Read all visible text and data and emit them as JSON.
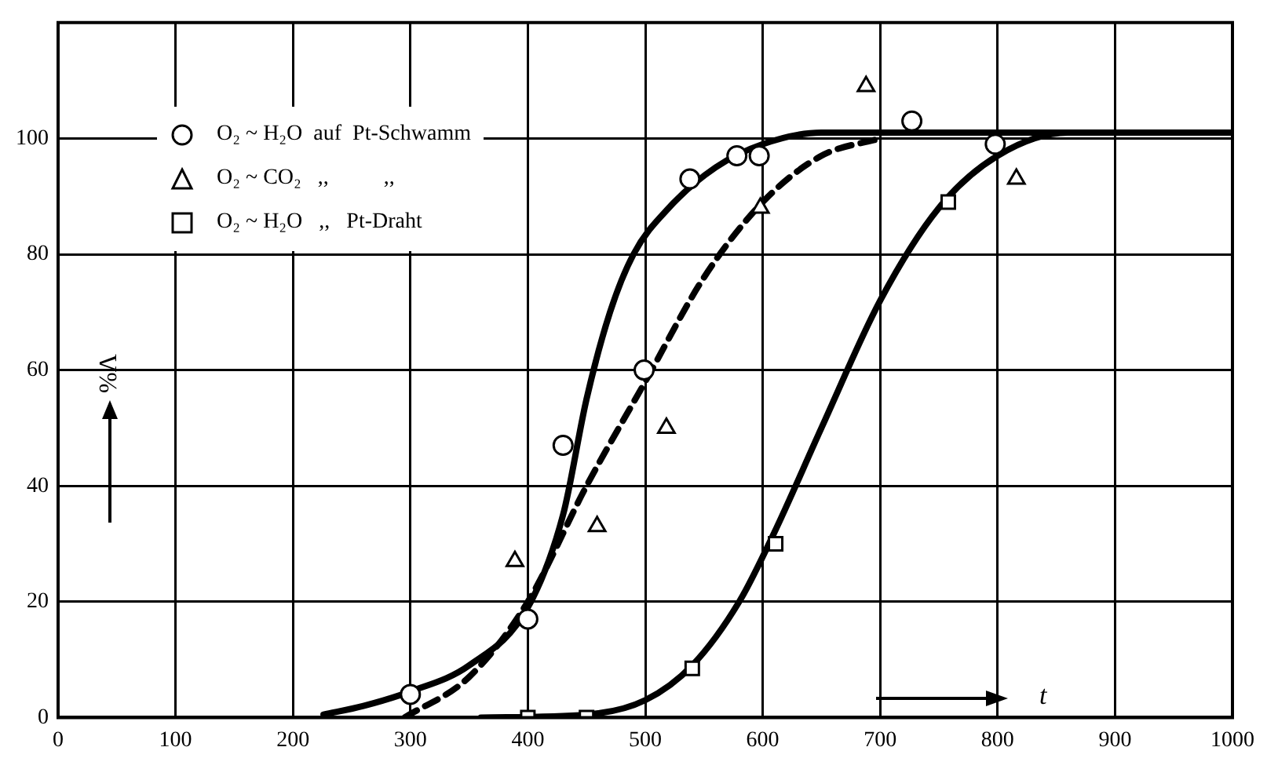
{
  "chart_data": {
    "type": "scatter",
    "xlabel": "t",
    "ylabel": "%Λ",
    "xlim": [
      0,
      1000
    ],
    "ylim": [
      0,
      120
    ],
    "xticks": [
      0,
      100,
      200,
      300,
      400,
      500,
      600,
      700,
      800,
      900,
      1000
    ],
    "yticks": [
      0,
      20,
      40,
      60,
      80,
      100
    ],
    "grid": true,
    "legend": "top left",
    "series": [
      {
        "name": "O₂ ~ H₂O  auf  Pt-Schwamm",
        "type": "scatter",
        "marker": "circle",
        "color": "#000000",
        "x": [
          300,
          400,
          430,
          499,
          538,
          578,
          597,
          727,
          798
        ],
        "values": [
          4,
          17,
          47,
          60,
          93,
          97,
          97,
          103,
          99
        ]
      },
      {
        "name": "O₂ ~ CO₂   ,,          ,,",
        "type": "scatter",
        "marker": "triangle",
        "color": "#000000",
        "x": [
          389,
          459,
          518,
          598,
          688,
          816
        ],
        "values": [
          27,
          33,
          50,
          88,
          109,
          93
        ]
      },
      {
        "name": "O₂ ~ H₂O   ,,   Pt-Draht",
        "type": "scatter",
        "marker": "square",
        "color": "#000000",
        "x": [
          400,
          450,
          540,
          611,
          758
        ],
        "values": [
          0,
          0,
          8.5,
          30,
          89
        ]
      },
      {
        "type": "line",
        "marker": "none",
        "line_style": "solid",
        "color": "#000000",
        "x": [
          226,
          260,
          300,
          350,
          400,
          430,
          450,
          470,
          490,
          520,
          560,
          600,
          650,
          700,
          1000
        ],
        "values": [
          0.5,
          2,
          4.5,
          9,
          19,
          35,
          55,
          70,
          80,
          88,
          95,
          99,
          101,
          101,
          101
        ]
      },
      {
        "type": "line",
        "marker": "none",
        "line_style": "dashed",
        "color": "#000000",
        "x": [
          295,
          350,
          400,
          450,
          500,
          550,
          600,
          650,
          700
        ],
        "values": [
          0,
          7,
          20,
          40,
          58,
          76,
          89,
          97,
          100
        ]
      },
      {
        "type": "line",
        "marker": "none",
        "line_style": "solid",
        "color": "#000000",
        "x": [
          360,
          450,
          500,
          540,
          580,
          610,
          650,
          700,
          750,
          800,
          860,
          1000
        ],
        "values": [
          0,
          0.5,
          3,
          9,
          20,
          32,
          50,
          72,
          88,
          97,
          101,
          101
        ]
      }
    ]
  }
}
